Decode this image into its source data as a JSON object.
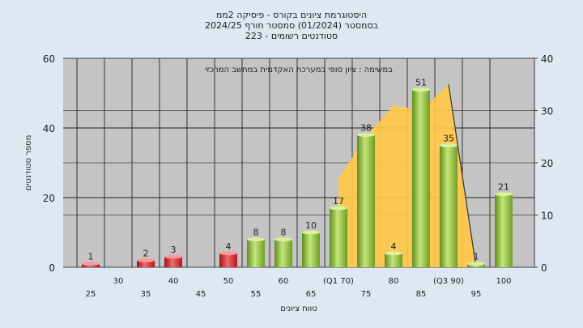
{
  "chart_data": {
    "type": "bar",
    "title_lines": [
      "היסטוגרמת ציונים בקורס - פיסיקה 2ממ",
      "בסמסטר  (01/2024)  סמסטר חורף 2024/25",
      "סטודנטים רשומים - 223"
    ],
    "subtitle": "במשימה : ציון סופי במערכת האקדמית במחשב המרכזי",
    "xlabel": "טווח ציונים",
    "ylabel": "מספר סטודנטים",
    "ylim": [
      0,
      60
    ],
    "y2lim": [
      0,
      40
    ],
    "yticks": [
      0,
      20,
      40,
      60
    ],
    "y2ticks": [
      0,
      10,
      20,
      30,
      40
    ],
    "grid": true,
    "legend": "none",
    "x_tick_labels": [
      {
        "x": 25,
        "label": "25",
        "row": 2
      },
      {
        "x": 30,
        "label": "30",
        "row": 1
      },
      {
        "x": 35,
        "label": "35",
        "row": 2
      },
      {
        "x": 40,
        "label": "40",
        "row": 1
      },
      {
        "x": 45,
        "label": "45",
        "row": 2
      },
      {
        "x": 50,
        "label": "50",
        "row": 1
      },
      {
        "x": 55,
        "label": "55",
        "row": 2
      },
      {
        "x": 60,
        "label": "60",
        "row": 1
      },
      {
        "x": 65,
        "label": "65",
        "row": 2
      },
      {
        "x": 70,
        "label": "(Q1 70)",
        "row": 1
      },
      {
        "x": 75,
        "label": "75",
        "row": 2
      },
      {
        "x": 80,
        "label": "80",
        "row": 1
      },
      {
        "x": 85,
        "label": "85",
        "row": 2
      },
      {
        "x": 90,
        "label": "(Q3 90)",
        "row": 1
      },
      {
        "x": 95,
        "label": "95",
        "row": 2
      },
      {
        "x": 100,
        "label": "100",
        "row": 1
      }
    ],
    "bars": [
      {
        "x": 25,
        "value": 1,
        "label": "1",
        "group": "fail"
      },
      {
        "x": 35,
        "value": 2,
        "label": "2",
        "group": "fail"
      },
      {
        "x": 40,
        "value": 3,
        "label": "3",
        "group": "fail"
      },
      {
        "x": 50,
        "value": 4,
        "label": "4",
        "group": "fail"
      },
      {
        "x": 55,
        "value": 8,
        "label": "8",
        "group": "pass"
      },
      {
        "x": 60,
        "value": 8,
        "label": "8",
        "group": "pass"
      },
      {
        "x": 65,
        "value": 10,
        "label": "10",
        "group": "pass"
      },
      {
        "x": 70,
        "value": 17,
        "label": "17",
        "group": "pass"
      },
      {
        "x": 75,
        "value": 38,
        "label": "38",
        "group": "pass"
      },
      {
        "x": 80,
        "value": 4,
        "label": "4",
        "group": "pass"
      },
      {
        "x": 85,
        "value": 51,
        "label": "51",
        "group": "pass"
      },
      {
        "x": 90,
        "value": 35,
        "label": "35",
        "group": "pass"
      },
      {
        "x": 95,
        "value": 1,
        "label": "1",
        "group": "pass"
      },
      {
        "x": 100,
        "value": 21,
        "label": "21",
        "group": "pass"
      }
    ],
    "area_secondary_axis": [
      {
        "x": 70,
        "value": 17
      },
      {
        "x": 75,
        "value": 25
      },
      {
        "x": 80,
        "value": 31
      },
      {
        "x": 85,
        "value": 30
      },
      {
        "x": 90,
        "value": 35
      },
      {
        "x": 95,
        "value": 0
      }
    ],
    "colors": {
      "fail_bar": "#d8242c",
      "pass_bar": "#8dbf3c",
      "area": "#ffc84a",
      "plot_bg": "#c4c4c4",
      "page_bg": "#dde8f3"
    }
  }
}
